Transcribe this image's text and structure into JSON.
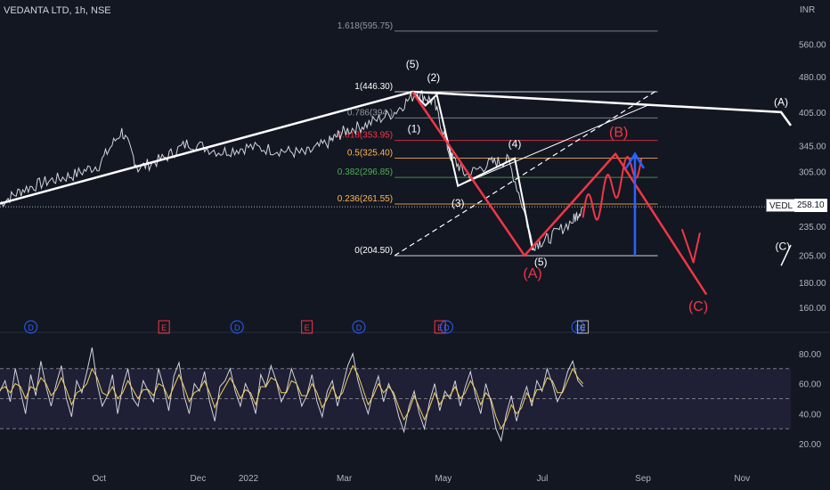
{
  "header": {
    "symbol": "VEDANTA LTD, 1h, NSE",
    "currency": "INR"
  },
  "price_tag": {
    "symbol": "VEDL",
    "price": "258.10"
  },
  "chart_data": [
    {
      "type": "line",
      "name": "price",
      "y_axis": {
        "scale": "log",
        "ticks": [
          "560.00",
          "480.00",
          "405.00",
          "345.00",
          "305.00",
          "265.00",
          "235.00",
          "205.00",
          "180.00",
          "160.00"
        ],
        "range": [
          150,
          640
        ]
      },
      "x_axis": {
        "ticks": [
          "Oct",
          "Dec",
          "2022",
          "Mar",
          "May",
          "Jul",
          "Sep",
          "Nov"
        ],
        "range": [
          "2021-08-01",
          "2022-12-01"
        ]
      },
      "grid": false,
      "fib_levels": [
        {
          "label": "1.618(595.75)",
          "value": 595.75,
          "color": "#9598a1"
        },
        {
          "label": "1(446.30)",
          "value": 446.3,
          "color": "#ffffff"
        },
        {
          "label": "0.786(394.)",
          "value": 394,
          "color": "#9598a1"
        },
        {
          "label": "0.618(353.95)",
          "value": 353.95,
          "color": "#f23645"
        },
        {
          "label": "0.5(325.40)",
          "value": 325.4,
          "color": "#ffb74d"
        },
        {
          "label": "0.382(296.85)",
          "value": 296.85,
          "color": "#4caf50"
        },
        {
          "label": "0.236(261.55)",
          "value": 261.55,
          "color": "#ffb74d"
        },
        {
          "label": "0(204.50)",
          "value": 204.5,
          "color": "#ffffff"
        }
      ],
      "current_price": 258.1,
      "price_path": [
        [
          "2021-08-01",
          262
        ],
        [
          "2021-08-15",
          280
        ],
        [
          "2021-08-31",
          292
        ],
        [
          "2021-09-15",
          300
        ],
        [
          "2021-10-01",
          315
        ],
        [
          "2021-10-15",
          370
        ],
        [
          "2021-10-25",
          310
        ],
        [
          "2021-11-10",
          325
        ],
        [
          "2021-11-25",
          350
        ],
        [
          "2021-12-15",
          335
        ],
        [
          "2022-01-01",
          343
        ],
        [
          "2022-01-20",
          338
        ],
        [
          "2022-02-05",
          332
        ],
        [
          "2022-02-20",
          352
        ],
        [
          "2022-03-01",
          370
        ],
        [
          "2022-03-15",
          382
        ],
        [
          "2022-04-01",
          405
        ],
        [
          "2022-04-15",
          445
        ],
        [
          "2022-04-25",
          425
        ],
        [
          "2022-05-05",
          330
        ],
        [
          "2022-05-15",
          300
        ],
        [
          "2022-05-30",
          318
        ],
        [
          "2022-06-10",
          322
        ],
        [
          "2022-06-25",
          215
        ],
        [
          "2022-07-05",
          222
        ],
        [
          "2022-07-20",
          242
        ],
        [
          "2022-07-26",
          258
        ]
      ],
      "wave_labels": [
        {
          "text": "(5)",
          "date": "2022-04-12",
          "price": 500,
          "color": "#ffffff"
        },
        {
          "text": "(2)",
          "date": "2022-04-25",
          "price": 470,
          "color": "#ffffff"
        },
        {
          "text": "(1)",
          "date": "2022-04-13",
          "price": 368,
          "color": "#ffffff"
        },
        {
          "text": "(4)",
          "date": "2022-06-14",
          "price": 342,
          "color": "#ffffff"
        },
        {
          "text": "(3)",
          "date": "2022-05-10",
          "price": 258,
          "color": "#ffffff"
        },
        {
          "text": "(5)",
          "date": "2022-06-30",
          "price": 195,
          "color": "#ffffff"
        },
        {
          "text": "(A)",
          "date": "2022-11-25",
          "price": 418,
          "color": "#ffffff"
        },
        {
          "text": "(C)",
          "date": "2022-11-26",
          "price": 210,
          "color": "#ffffff"
        },
        {
          "text": "(A)",
          "date": "2022-06-25",
          "price": 184,
          "color": "#f23645"
        },
        {
          "text": "(B)",
          "date": "2022-08-17",
          "price": 360,
          "color": "#f23645"
        },
        {
          "text": "(C)",
          "date": "2022-10-05",
          "price": 157,
          "color": "#f23645"
        }
      ],
      "event_markers": [
        {
          "kind": "D",
          "date": "2021-08-20",
          "color": "#2962ff"
        },
        {
          "kind": "E",
          "date": "2021-11-10",
          "color": "#f23645"
        },
        {
          "kind": "D",
          "date": "2021-12-25",
          "color": "#2962ff"
        },
        {
          "kind": "E",
          "date": "2022-02-06",
          "color": "#f23645"
        },
        {
          "kind": "D",
          "date": "2022-03-10",
          "color": "#2962ff"
        },
        {
          "kind": "E",
          "date": "2022-04-29",
          "color": "#f23645"
        },
        {
          "kind": "D",
          "date": "2022-05-03",
          "color": "#2962ff"
        },
        {
          "kind": "D",
          "date": "2022-07-23",
          "color": "#2962ff"
        },
        {
          "kind": "E",
          "date": "2022-07-26",
          "color": "#b2b5be"
        }
      ]
    },
    {
      "type": "line",
      "name": "rsi",
      "y_axis": {
        "ticks": [
          "80.00",
          "60.00",
          "40.00",
          "20.00"
        ],
        "range": [
          10,
          90
        ]
      },
      "bands": [
        70,
        50,
        30
      ],
      "series": [
        {
          "color": "#d1d4dc",
          "values": [
            55,
            62,
            48,
            70,
            55,
            40,
            66,
            52,
            75,
            58,
            45,
            60,
            72,
            50,
            38,
            62,
            54,
            68,
            84,
            60,
            45,
            52,
            66,
            40,
            58,
            70,
            50,
            45,
            62,
            55,
            48,
            70,
            58,
            42,
            65,
            74,
            52,
            40,
            60,
            55,
            68,
            48,
            35,
            58,
            62,
            70,
            55,
            45,
            60,
            52,
            40,
            66,
            58,
            72,
            62,
            48,
            55,
            70,
            60,
            45,
            52,
            66,
            48,
            38,
            55,
            62,
            45,
            58,
            72,
            80,
            62,
            50,
            40,
            55,
            65,
            48,
            60,
            52,
            38,
            28,
            45,
            55,
            40,
            30,
            48,
            60,
            42,
            55,
            50,
            62,
            45,
            58,
            68,
            52,
            40,
            60,
            48,
            30,
            22,
            40,
            52,
            35,
            48,
            58,
            45,
            62,
            55,
            70,
            60,
            48,
            55,
            68,
            75,
            62,
            58
          ]
        },
        {
          "color": "#f0d060",
          "values": [
            56,
            58,
            54,
            60,
            58,
            50,
            58,
            56,
            64,
            60,
            52,
            56,
            64,
            56,
            46,
            54,
            56,
            60,
            70,
            64,
            54,
            52,
            58,
            50,
            54,
            62,
            56,
            50,
            56,
            56,
            52,
            60,
            58,
            50,
            58,
            66,
            58,
            48,
            54,
            56,
            62,
            54,
            44,
            52,
            58,
            64,
            58,
            50,
            56,
            54,
            46,
            58,
            58,
            64,
            62,
            54,
            54,
            62,
            60,
            52,
            52,
            60,
            54,
            44,
            50,
            58,
            50,
            54,
            64,
            72,
            66,
            56,
            46,
            52,
            60,
            54,
            58,
            54,
            44,
            36,
            42,
            52,
            44,
            36,
            44,
            54,
            46,
            52,
            52,
            58,
            50,
            54,
            62,
            56,
            46,
            54,
            50,
            38,
            30,
            36,
            46,
            40,
            44,
            54,
            48,
            56,
            56,
            64,
            62,
            54,
            54,
            62,
            70,
            64,
            60
          ]
        }
      ],
      "x_axis": {
        "ticks": [
          "Oct",
          "Dec",
          "2022",
          "Mar",
          "May",
          "Jul",
          "Sep",
          "Nov"
        ]
      }
    }
  ]
}
